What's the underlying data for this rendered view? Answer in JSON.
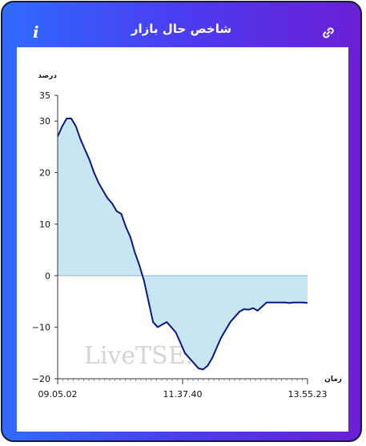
{
  "header": {
    "title": "شاخص حال بازار",
    "info_icon": "info-icon",
    "link_icon": "link-icon"
  },
  "colors": {
    "frame_gradient_start": "#2f6bff",
    "frame_gradient_end": "#6a1fd6",
    "line": "#0a1780",
    "fill": "#c8e6f2"
  },
  "watermark": "LiveTSE.ir",
  "chart_data": {
    "type": "area",
    "ylabel": "درصد",
    "xlabel": "زمان",
    "ylim": [
      -20,
      35
    ],
    "yticks": [
      35,
      30,
      20,
      10,
      0,
      -10,
      -20
    ],
    "ytick_labels": [
      "35",
      "30",
      "20",
      "10",
      "0",
      "−10",
      "−20"
    ],
    "x_tick_labels": [
      "09.05.02",
      "11.37.40",
      "13.55.23"
    ],
    "grid": false,
    "x": [
      "09.05.02",
      "09.08",
      "09.11",
      "09.14",
      "09.17",
      "09.21",
      "09.25",
      "09.29",
      "09.33",
      "09.37",
      "09.41",
      "09.45",
      "09.50",
      "09.55",
      "10.00",
      "10.05",
      "10.10",
      "10.15",
      "10.20",
      "10.25",
      "10.30",
      "10.34",
      "10.38",
      "10.42",
      "10.46",
      "10.50",
      "10.55",
      "11.00",
      "11.05",
      "11.10",
      "11.15",
      "11.20",
      "11.25",
      "11.30",
      "11.35",
      "11.37.40",
      "11.41",
      "11.45",
      "11.50",
      "11.55",
      "12.00",
      "12.05",
      "12.10",
      "12.15",
      "12.20",
      "12.25",
      "12.30",
      "12.40",
      "12.50",
      "13.00",
      "13.10",
      "13.20",
      "13.30",
      "13.40",
      "13.50",
      "13.55.23"
    ],
    "y": [
      27,
      29,
      30.5,
      30.5,
      29,
      26.5,
      24.5,
      22.5,
      20,
      18,
      16.5,
      15,
      14,
      12.5,
      12,
      9.5,
      7.5,
      4.5,
      2,
      -1,
      -5,
      -9,
      -10,
      -9.5,
      -9,
      -10,
      -11,
      -13,
      -15,
      -16,
      -17,
      -18,
      -18.2,
      -17.5,
      -16,
      -14,
      -12,
      -10.5,
      -9,
      -8,
      -7,
      -6.5,
      -6.6,
      -6.3,
      -6.8,
      -6,
      -5.2,
      -5.2,
      -5.2,
      -5.2,
      -5.2,
      -5.3,
      -5.2,
      -5.2,
      -5.2,
      -5.3
    ]
  }
}
